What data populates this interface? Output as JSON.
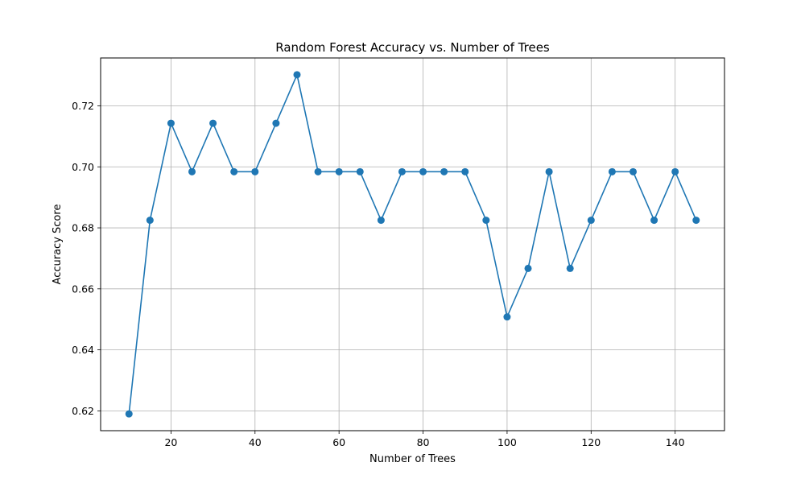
{
  "chart_data": {
    "type": "line",
    "title": "Random Forest Accuracy vs. Number of Trees",
    "xlabel": "Number of Trees",
    "ylabel": "Accuracy Score",
    "xlim": [
      3.25,
      151.75
    ],
    "ylim": [
      0.6135,
      0.7357
    ],
    "xticks": [
      20,
      40,
      60,
      80,
      100,
      120,
      140
    ],
    "yticks": [
      0.62,
      0.64,
      0.66,
      0.68,
      0.7,
      0.72
    ],
    "xtick_labels": [
      "20",
      "40",
      "60",
      "80",
      "100",
      "120",
      "140"
    ],
    "ytick_labels": [
      "0.62",
      "0.64",
      "0.66",
      "0.68",
      "0.70",
      "0.72"
    ],
    "grid": true,
    "marker": "circle",
    "color": "#1f77b4",
    "series": [
      {
        "x": [
          10,
          15,
          20,
          25,
          30,
          35,
          40,
          45,
          50,
          55,
          60,
          65,
          70,
          75,
          80,
          85,
          90,
          95,
          100,
          105,
          110,
          115,
          120,
          125,
          130,
          135,
          140,
          145
        ],
        "values": [
          0.619,
          0.6825,
          0.7143,
          0.6984,
          0.7143,
          0.6984,
          0.6984,
          0.7143,
          0.7302,
          0.6984,
          0.6984,
          0.6984,
          0.6825,
          0.6984,
          0.6984,
          0.6984,
          0.6984,
          0.6825,
          0.6508,
          0.6667,
          0.6984,
          0.6667,
          0.6825,
          0.6984,
          0.6984,
          0.6825,
          0.6984,
          0.6825
        ]
      }
    ]
  }
}
